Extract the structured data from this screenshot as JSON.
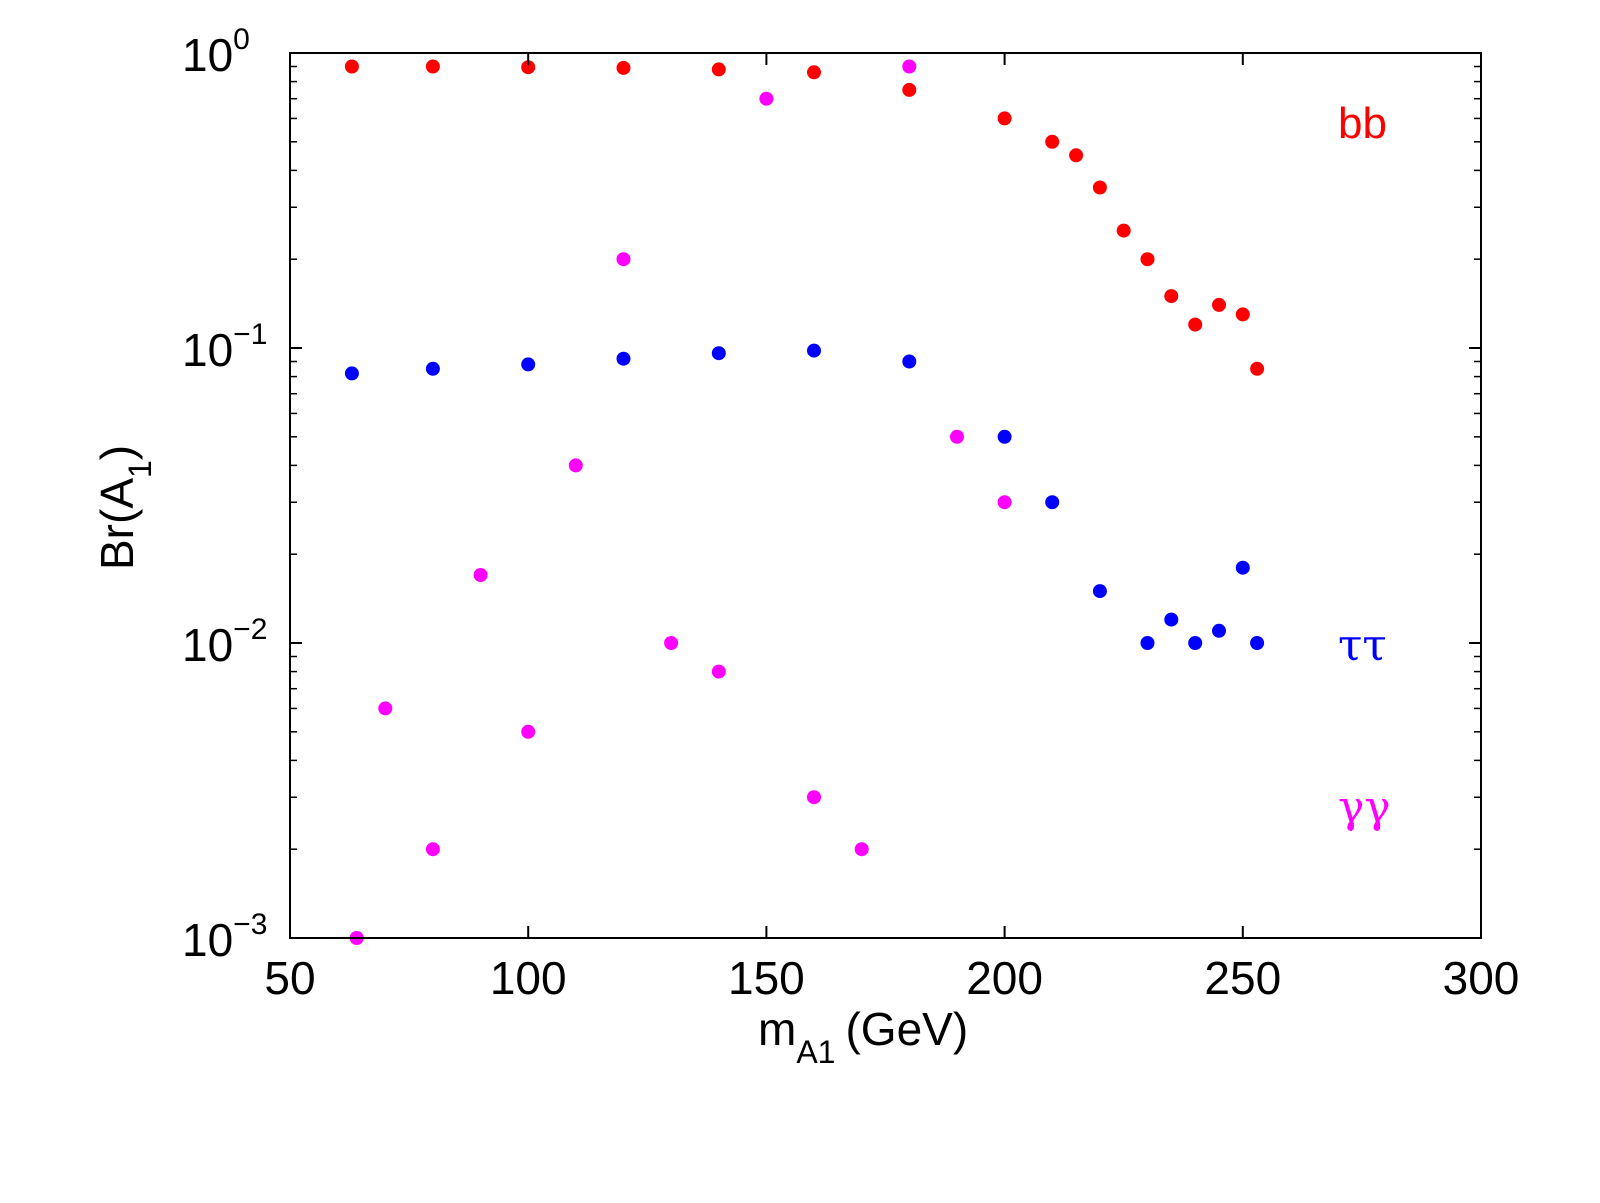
{
  "chart_data": {
    "type": "scatter",
    "title": "",
    "xlabel_main": "m",
    "xlabel_sub": "A1",
    "xlabel_unit": "(GeV)",
    "ylabel_main": "Br(A",
    "ylabel_sub": "1",
    "ylabel_close": ")",
    "xlim": [
      50,
      300
    ],
    "ylim": [
      0.001,
      1
    ],
    "yscale": "log",
    "grid": false,
    "x_ticks": [
      "50",
      "100",
      "150",
      "200",
      "250",
      "300"
    ],
    "y_ticks": [
      {
        "base": "10",
        "exp": "0"
      },
      {
        "base": "10",
        "exp": "−1"
      },
      {
        "base": "10",
        "exp": "−2"
      },
      {
        "base": "10",
        "exp": "−3"
      }
    ],
    "legend": [
      {
        "label": "bb",
        "color": "#ff0000"
      },
      {
        "label": "ττ",
        "color": "#0000ff"
      },
      {
        "label": "γγ",
        "color": "#ff00ff"
      }
    ],
    "series": [
      {
        "label_ref": "bb",
        "color": "#ff0000",
        "x": [
          63,
          80,
          100,
          120,
          140,
          160,
          180,
          200,
          210,
          215,
          220,
          225,
          230,
          235,
          240,
          245,
          250,
          253
        ],
        "y": [
          0.9,
          0.9,
          0.895,
          0.89,
          0.88,
          0.86,
          0.75,
          0.6,
          0.5,
          0.45,
          0.35,
          0.25,
          0.2,
          0.15,
          0.12,
          0.14,
          0.13,
          0.085
        ]
      },
      {
        "label_ref": "ττ",
        "color": "#0000ff",
        "x": [
          63,
          80,
          100,
          120,
          140,
          160,
          180,
          200,
          210,
          220,
          230,
          235,
          240,
          245,
          250,
          253
        ],
        "y": [
          0.082,
          0.085,
          0.088,
          0.092,
          0.096,
          0.098,
          0.09,
          0.05,
          0.03,
          0.015,
          0.01,
          0.012,
          0.01,
          0.011,
          0.018,
          0.01
        ]
      },
      {
        "label_ref": "γγ",
        "color": "#ff00ff",
        "x": [
          64,
          70,
          80,
          90,
          100,
          110,
          120,
          130,
          140,
          150,
          160,
          170,
          180,
          190,
          200
        ],
        "y": [
          0.001,
          0.006,
          0.002,
          0.017,
          0.005,
          0.04,
          0.2,
          0.01,
          0.008,
          0.7,
          0.003,
          0.002,
          0.9,
          0.05,
          0.03
        ]
      }
    ]
  }
}
